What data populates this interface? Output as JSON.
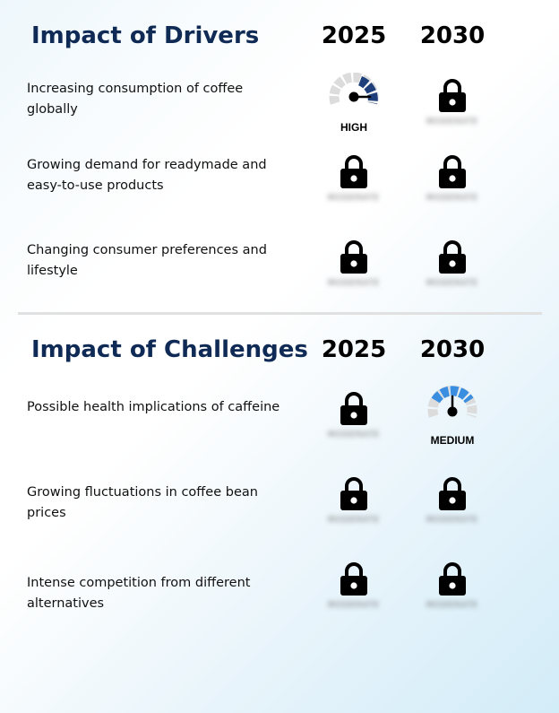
{
  "drivers": {
    "title": "Impact of Drivers",
    "year1": "2025",
    "year2": "2030",
    "rows": [
      {
        "label": "Increasing consumption of coffee globally",
        "y2025": {
          "type": "gauge",
          "level": "HIGH"
        },
        "y2030": {
          "type": "locked",
          "hidden_text": "MODERATE"
        }
      },
      {
        "label": "Growing demand for readymade and easy-to-use products",
        "y2025": {
          "type": "locked",
          "hidden_text": "MODERATE"
        },
        "y2030": {
          "type": "locked",
          "hidden_text": "MODERATE"
        }
      },
      {
        "label": "Changing consumer preferences and lifestyle",
        "y2025": {
          "type": "locked",
          "hidden_text": "MODERATE"
        },
        "y2030": {
          "type": "locked",
          "hidden_text": "MODERATE"
        }
      }
    ]
  },
  "challenges": {
    "title": "Impact of Challenges",
    "year1": "2025",
    "year2": "2030",
    "rows": [
      {
        "label": "Possible health implications of caffeine",
        "y2025": {
          "type": "locked",
          "hidden_text": "MODERATE"
        },
        "y2030": {
          "type": "gauge",
          "level": "MEDIUM"
        }
      },
      {
        "label": "Growing fluctuations in coffee bean prices",
        "y2025": {
          "type": "locked",
          "hidden_text": "MODERATE"
        },
        "y2030": {
          "type": "locked",
          "hidden_text": "MODERATE"
        }
      },
      {
        "label": "Intense competition from different alternatives",
        "y2025": {
          "type": "locked",
          "hidden_text": "MODERATE"
        },
        "y2030": {
          "type": "locked",
          "hidden_text": "MODERATE"
        }
      }
    ]
  },
  "colors": {
    "title": "#0f2a55",
    "gauge_high": "#1f3f7a",
    "gauge_medium": "#3a8ee0",
    "gauge_track": "#dcdcdc",
    "divider": "#e1e1e1"
  },
  "icons": {
    "lock": "lock-icon",
    "gauge": "gauge-icon"
  }
}
